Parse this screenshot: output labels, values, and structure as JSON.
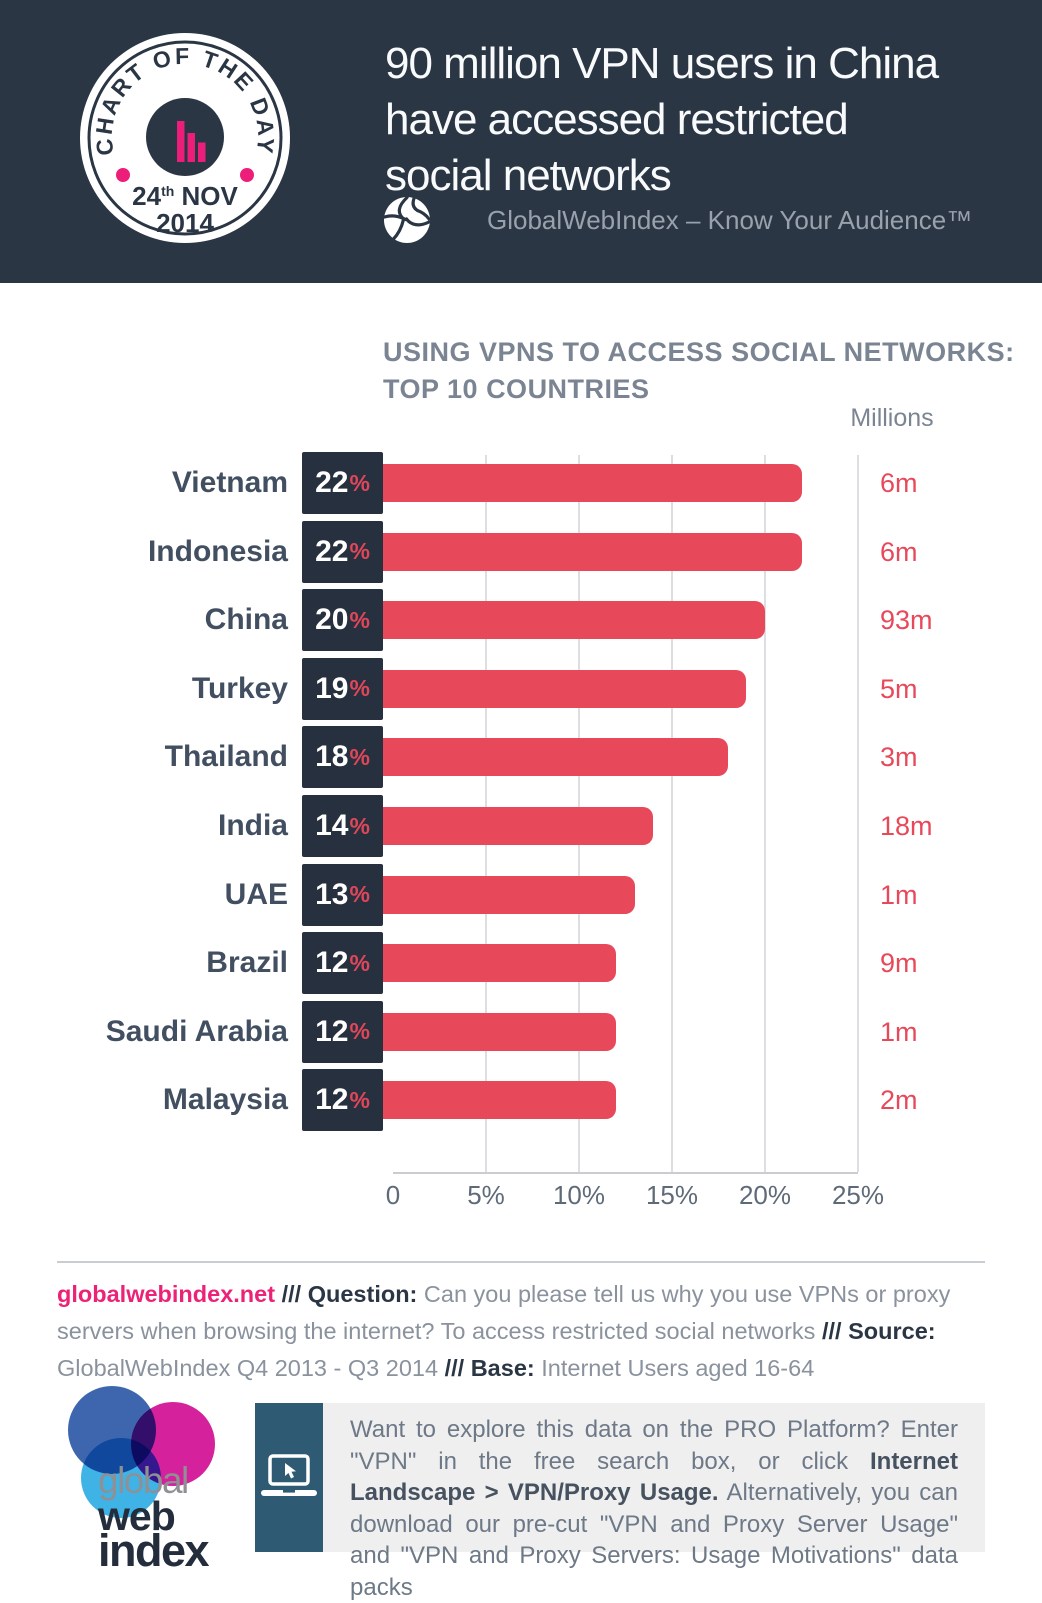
{
  "colors": {
    "header_navy": "#2b3645",
    "bar_red": "#e8495a",
    "accent_pink": "#ed1e79",
    "pct_box_navy": "#27303e",
    "teal_promo": "#2e5a74",
    "gray_text": "#7b8492"
  },
  "header": {
    "badge": {
      "arc_text": "CHART OF THE DAY",
      "day": "24",
      "day_suffix": "th",
      "month": " NOV",
      "year": "2014"
    },
    "title_lines": [
      "90 million VPN users in China",
      "have accessed restricted",
      "social networks"
    ],
    "brand_tagline": "GlobalWebIndex – Know Your Audience™"
  },
  "chart": {
    "title_lines": [
      "USING VPNS TO ACCESS SOCIAL NETWORKS:",
      "TOP 10 COUNTRIES"
    ],
    "unit_label": "Millions"
  },
  "chart_data": {
    "type": "bar",
    "orientation": "horizontal",
    "title": "USING VPNS TO ACCESS SOCIAL NETWORKS: TOP 10 COUNTRIES",
    "categories": [
      "Vietnam",
      "Indonesia",
      "China",
      "Turkey",
      "Thailand",
      "India",
      "UAE",
      "Brazil",
      "Saudi Arabia",
      "Malaysia"
    ],
    "values": [
      22,
      22,
      20,
      19,
      18,
      14,
      13,
      12,
      12,
      12
    ],
    "value_suffix": "%",
    "secondary_series_label": "Millions",
    "secondary_values": [
      "6m",
      "6m",
      "93m",
      "5m",
      "3m",
      "18m",
      "1m",
      "9m",
      "1m",
      "2m"
    ],
    "xlim": [
      0,
      25
    ],
    "x_ticks": [
      "0",
      "5%",
      "10%",
      "15%",
      "20%",
      "25%"
    ],
    "grid": true,
    "legend": false,
    "bar_color": "#e8495a"
  },
  "footer": {
    "segments": [
      {
        "t": "globalwebindex.net",
        "s": "link"
      },
      {
        "t": " /// ",
        "s": "sep"
      },
      {
        "t": "Question: ",
        "s": "label"
      },
      {
        "t": "Can you please tell us why you use VPNs or proxy servers when browsing the internet? To access restricted social networks ",
        "s": "body"
      },
      {
        "t": " /// ",
        "s": "sep"
      },
      {
        "t": "Source: ",
        "s": "label"
      },
      {
        "t": "GlobalWebIndex Q4 2013 - Q3 2014 ",
        "s": "body"
      },
      {
        "t": " /// ",
        "s": "sep"
      },
      {
        "t": "Base: ",
        "s": "label"
      },
      {
        "t": " Internet Users aged 16-64",
        "s": "body"
      }
    ]
  },
  "logo": {
    "word1": "global",
    "word2": "web",
    "word3": "index"
  },
  "promo": {
    "segments": [
      {
        "t": "Want to explore this data on the PRO Platform? Enter \"VPN\" in the free search box, or click ",
        "s": "body"
      },
      {
        "t": "Internet Landscape > VPN/Proxy Usage.",
        "s": "label"
      },
      {
        "t": " Alternatively, you can download our pre-cut \"VPN and Proxy Server Usage\" and \"VPN and Proxy Servers: Usage Motivations\" data packs",
        "s": "body"
      }
    ]
  }
}
